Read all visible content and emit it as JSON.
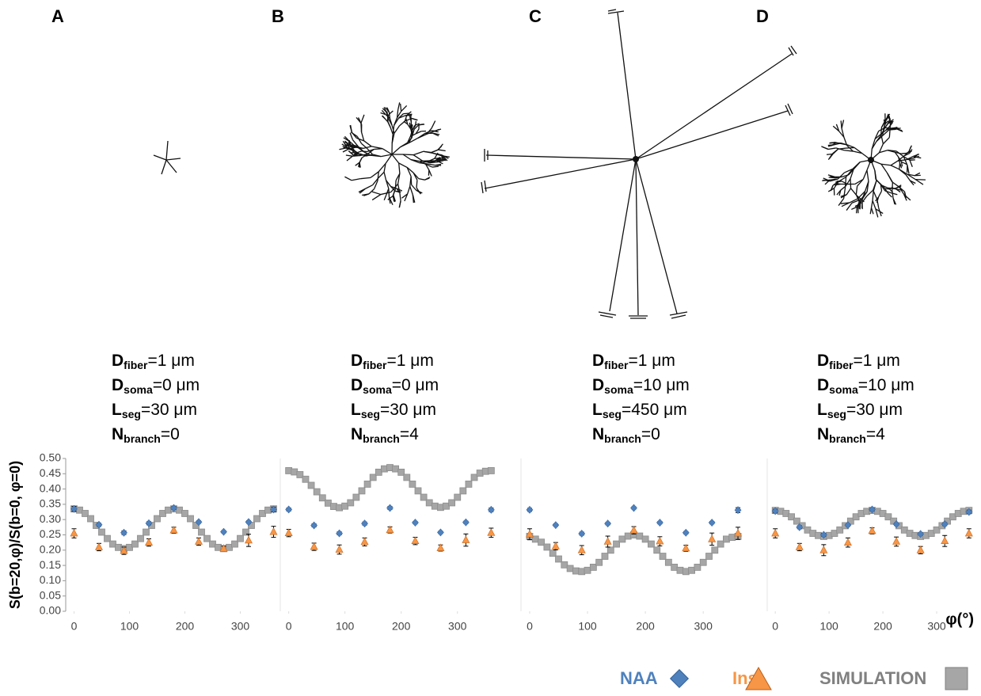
{
  "chart_data": [
    {
      "type": "scatter",
      "panel": "A",
      "parameters": [
        {
          "symbol": "D",
          "subscript": "fiber",
          "value": "=1 μm"
        },
        {
          "symbol": "D",
          "subscript": "soma",
          "value": "=0 μm"
        },
        {
          "symbol": "L",
          "subscript": "seg",
          "value": "=30 μm"
        },
        {
          "symbol": "N",
          "subscript": "branch",
          "value": "=0"
        }
      ],
      "ylabel": "S(b=20,φ)/S(b=0, φ=0)",
      "xlim": [
        -15,
        375
      ],
      "xticks": [
        0,
        100,
        200,
        300
      ],
      "ylim": [
        0,
        0.5
      ],
      "yticks": [
        {
          "value": 0,
          "label": "0.00"
        },
        0.05,
        {
          "value": 0.1,
          "label": "0.10"
        },
        0.15,
        {
          "value": 0.2,
          "label": "0.20"
        },
        0.25,
        {
          "value": 0.3,
          "label": "0.30"
        },
        0.35,
        {
          "value": 0.4,
          "label": "0.40"
        },
        0.45,
        {
          "value": 0.5,
          "label": "0.50"
        }
      ],
      "series": [
        {
          "name": "NAA",
          "color": "#4f81bd",
          "x": [
            0,
            45,
            90,
            135,
            180,
            225,
            270,
            315,
            360
          ],
          "values": [
            0.335,
            0.283,
            0.257,
            0.288,
            0.338,
            0.292,
            0.26,
            0.292,
            0.333
          ],
          "errors": [
            0.008,
            0.005,
            0.006,
            0.005,
            0.005,
            0.004,
            0.004,
            0.004,
            0.008
          ]
        },
        {
          "name": "Ins",
          "color": "#f79646",
          "x": [
            0,
            45,
            90,
            135,
            180,
            225,
            270,
            315,
            360
          ],
          "values": [
            0.255,
            0.21,
            0.198,
            0.225,
            0.265,
            0.228,
            0.205,
            0.232,
            0.26
          ],
          "errors": [
            0.015,
            0.012,
            0.012,
            0.012,
            0.01,
            0.012,
            0.008,
            0.02,
            0.018
          ]
        },
        {
          "name": "SIMULATION",
          "color": "#a6a6a6",
          "x": [
            0,
            10,
            20,
            30,
            40,
            50,
            60,
            70,
            80,
            90,
            100,
            110,
            120,
            130,
            140,
            150,
            160,
            170,
            180,
            190,
            200,
            210,
            220,
            230,
            240,
            250,
            260,
            270,
            280,
            290,
            300,
            310,
            320,
            330,
            340,
            350,
            360
          ],
          "values": [
            0.335,
            0.331,
            0.32,
            0.303,
            0.281,
            0.259,
            0.238,
            0.22,
            0.209,
            0.205,
            0.209,
            0.22,
            0.238,
            0.259,
            0.281,
            0.303,
            0.32,
            0.331,
            0.335,
            0.331,
            0.32,
            0.303,
            0.281,
            0.259,
            0.238,
            0.22,
            0.209,
            0.205,
            0.209,
            0.22,
            0.238,
            0.259,
            0.281,
            0.303,
            0.32,
            0.331,
            0.335
          ]
        }
      ]
    },
    {
      "type": "scatter",
      "panel": "B",
      "parameters": [
        {
          "symbol": "D",
          "subscript": "fiber",
          "value": "=1 μm"
        },
        {
          "symbol": "D",
          "subscript": "soma",
          "value": "=0 μm"
        },
        {
          "symbol": "L",
          "subscript": "seg",
          "value": "=30 μm"
        },
        {
          "symbol": "N",
          "subscript": "branch",
          "value": "=4"
        }
      ],
      "xlim": [
        -15,
        375
      ],
      "xticks": [
        0,
        100,
        200,
        300
      ],
      "ylim": [
        0,
        0.5
      ],
      "series": [
        {
          "name": "NAA",
          "color": "#4f81bd",
          "x": [
            0,
            45,
            90,
            135,
            180,
            225,
            270,
            315,
            360
          ],
          "values": [
            0.333,
            0.281,
            0.255,
            0.287,
            0.338,
            0.29,
            0.258,
            0.291,
            0.332
          ],
          "errors": [
            0.005,
            0.005,
            0.005,
            0.005,
            0.005,
            0.004,
            0.004,
            0.004,
            0.006
          ]
        },
        {
          "name": "Ins",
          "color": "#f79646",
          "x": [
            0,
            45,
            90,
            135,
            180,
            225,
            270,
            315,
            360
          ],
          "values": [
            0.256,
            0.211,
            0.202,
            0.227,
            0.266,
            0.23,
            0.207,
            0.233,
            0.257
          ],
          "errors": [
            0.012,
            0.012,
            0.015,
            0.013,
            0.01,
            0.012,
            0.01,
            0.02,
            0.015
          ]
        },
        {
          "name": "SIMULATION",
          "color": "#a6a6a6",
          "x": [
            0,
            10,
            20,
            30,
            40,
            50,
            60,
            70,
            80,
            90,
            100,
            110,
            120,
            130,
            140,
            150,
            160,
            170,
            180,
            190,
            200,
            210,
            220,
            230,
            240,
            250,
            260,
            270,
            280,
            290,
            300,
            310,
            320,
            330,
            340,
            350,
            360
          ],
          "values": [
            0.46,
            0.456,
            0.447,
            0.432,
            0.412,
            0.391,
            0.371,
            0.354,
            0.343,
            0.339,
            0.344,
            0.355,
            0.373,
            0.394,
            0.416,
            0.438,
            0.455,
            0.466,
            0.47,
            0.466,
            0.455,
            0.438,
            0.416,
            0.394,
            0.373,
            0.355,
            0.344,
            0.34,
            0.344,
            0.355,
            0.373,
            0.394,
            0.416,
            0.438,
            0.452,
            0.458,
            0.46
          ]
        }
      ]
    },
    {
      "type": "scatter",
      "panel": "C",
      "parameters": [
        {
          "symbol": "D",
          "subscript": "fiber",
          "value": "=1 μm"
        },
        {
          "symbol": "D",
          "subscript": "soma",
          "value": "=10 μm"
        },
        {
          "symbol": "L",
          "subscript": "seg",
          "value": "=450 μm"
        },
        {
          "symbol": "N",
          "subscript": "branch",
          "value": "=0"
        }
      ],
      "xlim": [
        -15,
        375
      ],
      "xticks": [
        0,
        100,
        200,
        300
      ],
      "ylim": [
        0,
        0.5
      ],
      "series": [
        {
          "name": "NAA",
          "color": "#4f81bd",
          "x": [
            0,
            45,
            90,
            135,
            180,
            225,
            270,
            315,
            360
          ],
          "values": [
            0.332,
            0.282,
            0.254,
            0.287,
            0.338,
            0.29,
            0.257,
            0.29,
            0.331
          ],
          "errors": [
            0.005,
            0.004,
            0.005,
            0.004,
            0.004,
            0.004,
            0.004,
            0.004,
            0.008
          ]
        },
        {
          "name": "Ins",
          "color": "#f79646",
          "x": [
            0,
            45,
            90,
            135,
            180,
            225,
            270,
            315,
            360
          ],
          "values": [
            0.252,
            0.213,
            0.2,
            0.228,
            0.265,
            0.229,
            0.206,
            0.236,
            0.255
          ],
          "errors": [
            0.018,
            0.012,
            0.015,
            0.018,
            0.012,
            0.015,
            0.01,
            0.02,
            0.02
          ]
        },
        {
          "name": "SIMULATION",
          "color": "#a6a6a6",
          "x": [
            0,
            10,
            20,
            30,
            40,
            50,
            60,
            70,
            80,
            90,
            100,
            110,
            120,
            130,
            140,
            150,
            160,
            170,
            180,
            190,
            200,
            210,
            220,
            230,
            240,
            250,
            260,
            270,
            280,
            290,
            300,
            310,
            320,
            330,
            340,
            350,
            360
          ],
          "values": [
            0.245,
            0.236,
            0.226,
            0.21,
            0.19,
            0.171,
            0.152,
            0.14,
            0.132,
            0.13,
            0.134,
            0.144,
            0.16,
            0.18,
            0.2,
            0.22,
            0.236,
            0.246,
            0.25,
            0.246,
            0.236,
            0.22,
            0.2,
            0.18,
            0.16,
            0.144,
            0.134,
            0.13,
            0.134,
            0.144,
            0.16,
            0.18,
            0.2,
            0.22,
            0.236,
            0.242,
            0.245
          ]
        }
      ]
    },
    {
      "type": "scatter",
      "panel": "D",
      "parameters": [
        {
          "symbol": "D",
          "subscript": "fiber",
          "value": "=1 μm"
        },
        {
          "symbol": "D",
          "subscript": "soma",
          "value": "=10 μm"
        },
        {
          "symbol": "L",
          "subscript": "seg",
          "value": "=30 μm"
        },
        {
          "symbol": "N",
          "subscript": "branch",
          "value": "=4"
        }
      ],
      "xlabel": "φ(°)",
      "xlim": [
        -15,
        375
      ],
      "xticks": [
        0,
        100,
        200,
        300
      ],
      "ylim": [
        0,
        0.5
      ],
      "series": [
        {
          "name": "NAA",
          "color": "#4f81bd",
          "x": [
            0,
            45,
            90,
            135,
            180,
            225,
            270,
            315,
            360
          ],
          "values": [
            0.328,
            0.275,
            0.25,
            0.282,
            0.333,
            0.285,
            0.253,
            0.285,
            0.325
          ],
          "errors": [
            0.006,
            0.005,
            0.005,
            0.004,
            0.005,
            0.004,
            0.004,
            0.005,
            0.006
          ]
        },
        {
          "name": "Ins",
          "color": "#f79646",
          "x": [
            0,
            45,
            90,
            135,
            180,
            225,
            270,
            315,
            360
          ],
          "values": [
            0.255,
            0.21,
            0.2,
            0.225,
            0.263,
            0.228,
            0.2,
            0.23,
            0.255
          ],
          "errors": [
            0.015,
            0.012,
            0.018,
            0.015,
            0.01,
            0.015,
            0.012,
            0.018,
            0.015
          ]
        },
        {
          "name": "SIMULATION",
          "color": "#a6a6a6",
          "x": [
            0,
            10,
            20,
            30,
            40,
            50,
            60,
            70,
            80,
            90,
            100,
            110,
            120,
            130,
            140,
            150,
            160,
            170,
            180,
            190,
            200,
            210,
            220,
            230,
            240,
            250,
            260,
            270,
            280,
            290,
            300,
            310,
            320,
            330,
            340,
            350,
            360
          ],
          "values": [
            0.33,
            0.327,
            0.32,
            0.309,
            0.295,
            0.28,
            0.266,
            0.255,
            0.248,
            0.245,
            0.248,
            0.255,
            0.266,
            0.28,
            0.295,
            0.309,
            0.32,
            0.327,
            0.33,
            0.327,
            0.32,
            0.309,
            0.295,
            0.28,
            0.266,
            0.255,
            0.248,
            0.245,
            0.248,
            0.255,
            0.266,
            0.28,
            0.295,
            0.309,
            0.32,
            0.327,
            0.33
          ]
        }
      ]
    }
  ]
}
